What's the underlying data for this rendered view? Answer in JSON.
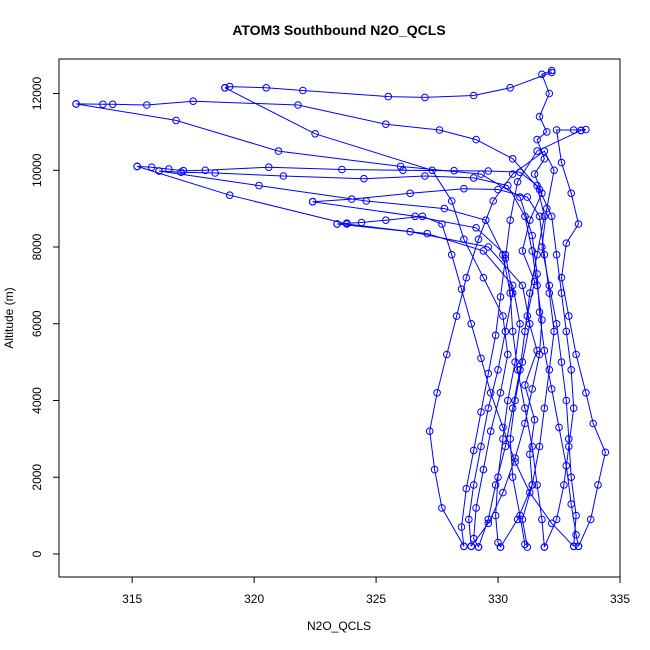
{
  "chart_data": {
    "type": "scatter",
    "title": "ATOM3 Southbound N2O_QCLS",
    "xlabel": "N2O_QCLS",
    "ylabel": "Altitude (m)",
    "xlim": [
      312,
      335
    ],
    "ylim": [
      -600,
      12900
    ],
    "x_ticks": [
      "315",
      "320",
      "325",
      "330",
      "335"
    ],
    "y_ticks": [
      "0",
      "2000",
      "4000",
      "6000",
      "8000",
      "10000",
      "12000"
    ],
    "marker": "open-circle",
    "line_connected": true,
    "grid": false,
    "color": "#0000ff",
    "series": [
      {
        "points": [
          [
            331.2,
            180
          ],
          [
            331.0,
            900
          ],
          [
            331.4,
            1800
          ],
          [
            331.3,
            2600
          ],
          [
            331.5,
            3500
          ],
          [
            331.1,
            4400
          ],
          [
            331.6,
            5300
          ],
          [
            331.2,
            6200
          ],
          [
            331.5,
            7100
          ],
          [
            331.0,
            7900
          ],
          [
            331.3,
            8700
          ],
          [
            331.8,
            9400
          ],
          [
            331.5,
            9900
          ],
          [
            331.9,
            10300
          ],
          [
            331.6,
            10800
          ],
          [
            332.0,
            11000
          ],
          [
            331.7,
            11400
          ],
          [
            332.1,
            12000
          ],
          [
            331.8,
            12500
          ],
          [
            332.2,
            12600
          ]
        ]
      },
      {
        "points": [
          [
            332.2,
            12550
          ],
          [
            330.5,
            12150
          ],
          [
            329.0,
            11950
          ],
          [
            327.0,
            11900
          ],
          [
            325.5,
            11920
          ],
          [
            322.0,
            12080
          ],
          [
            320.5,
            12150
          ],
          [
            319.0,
            12180
          ],
          [
            318.8,
            12150
          ]
        ]
      },
      {
        "points": [
          [
            318.8,
            12150
          ],
          [
            322.5,
            10950
          ],
          [
            327.3,
            10000
          ],
          [
            328.1,
            9200
          ],
          [
            328.6,
            8200
          ],
          [
            329.4,
            7200
          ],
          [
            330.2,
            6200
          ],
          [
            330.4,
            5200
          ],
          [
            330.1,
            4200
          ],
          [
            329.7,
            3200
          ],
          [
            329.4,
            2200
          ],
          [
            329.1,
            1200
          ],
          [
            329.0,
            400
          ],
          [
            329.2,
            180
          ]
        ]
      },
      {
        "points": [
          [
            329.2,
            180
          ],
          [
            329.6,
            900
          ],
          [
            329.9,
            1800
          ],
          [
            330.3,
            2800
          ],
          [
            330.6,
            3800
          ],
          [
            330.9,
            4800
          ],
          [
            331.1,
            5800
          ],
          [
            331.3,
            6800
          ],
          [
            331.6,
            7800
          ],
          [
            331.9,
            8800
          ],
          [
            331.6,
            9600
          ],
          [
            330.9,
            9950
          ],
          [
            329.6,
            9980
          ],
          [
            328.2,
            9990
          ],
          [
            326.1,
            10000
          ],
          [
            323.6,
            10020
          ],
          [
            320.6,
            10080
          ],
          [
            318.0,
            10000
          ],
          [
            317.1,
            9990
          ],
          [
            316.5,
            10030
          ],
          [
            315.8,
            10080
          ],
          [
            315.2,
            10100
          ]
        ]
      },
      {
        "points": [
          [
            315.2,
            10100
          ],
          [
            319.0,
            9350
          ],
          [
            323.8,
            8600
          ],
          [
            327.1,
            8350
          ],
          [
            329.4,
            7900
          ],
          [
            330.6,
            7000
          ],
          [
            330.9,
            6000
          ],
          [
            330.7,
            5000
          ],
          [
            330.4,
            4000
          ],
          [
            330.2,
            3000
          ],
          [
            330.0,
            2000
          ],
          [
            329.9,
            1000
          ],
          [
            330.0,
            300
          ],
          [
            330.1,
            180
          ]
        ]
      },
      {
        "points": [
          [
            330.1,
            180
          ],
          [
            330.8,
            900
          ],
          [
            331.4,
            1800
          ],
          [
            331.7,
            2800
          ],
          [
            331.9,
            3800
          ],
          [
            332.1,
            4800
          ],
          [
            332.3,
            5800
          ],
          [
            332.1,
            6800
          ],
          [
            331.9,
            7800
          ],
          [
            331.7,
            8800
          ],
          [
            331.2,
            9300
          ],
          [
            330.0,
            9500
          ],
          [
            328.6,
            9520
          ],
          [
            326.4,
            9400
          ],
          [
            324.0,
            9250
          ],
          [
            322.4,
            9180
          ]
        ]
      },
      {
        "points": [
          [
            322.4,
            9180
          ],
          [
            326.6,
            8800
          ],
          [
            329.1,
            8500
          ],
          [
            330.3,
            7800
          ],
          [
            330.6,
            6800
          ],
          [
            330.3,
            5800
          ],
          [
            330.0,
            4800
          ],
          [
            329.6,
            3800
          ],
          [
            329.3,
            2800
          ],
          [
            329.0,
            1800
          ],
          [
            328.8,
            900
          ],
          [
            328.9,
            200
          ]
        ]
      },
      {
        "points": [
          [
            328.9,
            200
          ],
          [
            329.6,
            800
          ],
          [
            330.2,
            1600
          ],
          [
            330.7,
            2500
          ],
          [
            331.1,
            3400
          ],
          [
            331.4,
            4300
          ],
          [
            331.7,
            5200
          ],
          [
            331.8,
            6100
          ],
          [
            331.6,
            7000
          ],
          [
            331.4,
            7900
          ],
          [
            331.1,
            8800
          ],
          [
            330.4,
            9600
          ],
          [
            329.0,
            9800
          ],
          [
            327.0,
            9850
          ],
          [
            324.5,
            9780
          ],
          [
            321.2,
            9850
          ],
          [
            318.4,
            9930
          ],
          [
            317.0,
            9950
          ],
          [
            316.1,
            9980
          ]
        ]
      },
      {
        "points": [
          [
            316.1,
            9980
          ],
          [
            320.2,
            9600
          ],
          [
            324.6,
            9200
          ],
          [
            327.8,
            9000
          ],
          [
            329.5,
            8700
          ],
          [
            330.2,
            7800
          ],
          [
            330.5,
            6800
          ],
          [
            330.6,
            5800
          ],
          [
            330.8,
            4800
          ],
          [
            331.1,
            3800
          ],
          [
            331.4,
            2800
          ],
          [
            331.6,
            1800
          ],
          [
            331.8,
            900
          ],
          [
            331.9,
            180
          ]
        ]
      },
      {
        "points": [
          [
            331.9,
            180
          ],
          [
            332.4,
            900
          ],
          [
            332.7,
            1800
          ],
          [
            332.9,
            2800
          ],
          [
            333.1,
            3800
          ],
          [
            333.0,
            4800
          ],
          [
            332.8,
            5800
          ],
          [
            332.6,
            6800
          ],
          [
            332.4,
            7800
          ],
          [
            332.2,
            8800
          ],
          [
            331.7,
            9500
          ],
          [
            330.6,
            10300
          ],
          [
            329.1,
            10800
          ],
          [
            327.6,
            11050
          ],
          [
            325.4,
            11200
          ],
          [
            321.8,
            11700
          ],
          [
            317.5,
            11800
          ],
          [
            315.6,
            11700
          ],
          [
            314.2,
            11720
          ],
          [
            313.8,
            11720
          ],
          [
            312.7,
            11730
          ]
        ]
      },
      {
        "points": [
          [
            312.7,
            11730
          ],
          [
            316.8,
            11300
          ],
          [
            321.0,
            10500
          ],
          [
            326.0,
            10100
          ],
          [
            329.3,
            9900
          ],
          [
            330.9,
            9300
          ],
          [
            331.4,
            8300
          ],
          [
            331.6,
            7300
          ],
          [
            331.7,
            6300
          ],
          [
            331.9,
            5300
          ],
          [
            332.2,
            4300
          ],
          [
            332.5,
            3300
          ],
          [
            332.8,
            2300
          ],
          [
            333.0,
            1300
          ],
          [
            333.2,
            500
          ],
          [
            333.3,
            200
          ]
        ]
      },
      {
        "points": [
          [
            333.3,
            200
          ],
          [
            333.8,
            900
          ],
          [
            334.1,
            1800
          ],
          [
            334.4,
            2650
          ],
          [
            333.9,
            3400
          ],
          [
            333.6,
            4200
          ],
          [
            333.2,
            5200
          ],
          [
            332.9,
            6200
          ],
          [
            332.6,
            7200
          ],
          [
            332.8,
            8100
          ],
          [
            333.3,
            8600
          ],
          [
            333.0,
            9400
          ],
          [
            332.6,
            10200
          ],
          [
            332.4,
            11050
          ],
          [
            333.1,
            11050
          ],
          [
            333.6,
            11060
          ],
          [
            333.4,
            11040
          ]
        ]
      },
      {
        "points": [
          [
            333.4,
            11040
          ],
          [
            331.6,
            10500
          ],
          [
            330.8,
            9700
          ],
          [
            330.5,
            8700
          ],
          [
            330.3,
            7700
          ],
          [
            330.1,
            6700
          ],
          [
            329.9,
            5700
          ],
          [
            329.6,
            4700
          ],
          [
            329.3,
            3700
          ],
          [
            329.0,
            2700
          ],
          [
            328.7,
            1700
          ],
          [
            328.5,
            700
          ],
          [
            328.6,
            200
          ]
        ]
      },
      {
        "points": [
          [
            328.6,
            200
          ],
          [
            327.7,
            1200
          ],
          [
            327.4,
            2200
          ],
          [
            327.2,
            3200
          ],
          [
            327.5,
            4200
          ],
          [
            327.9,
            5200
          ],
          [
            328.3,
            6200
          ],
          [
            328.7,
            7200
          ],
          [
            329.2,
            8200
          ],
          [
            329.8,
            9200
          ],
          [
            330.6,
            9900
          ],
          [
            331.9,
            10500
          ],
          [
            332.3,
            10000
          ],
          [
            332.0,
            9000
          ],
          [
            331.8,
            8000
          ],
          [
            332.1,
            7000
          ],
          [
            332.4,
            6000
          ],
          [
            332.6,
            5000
          ],
          [
            332.8,
            4000
          ],
          [
            332.9,
            3000
          ],
          [
            333.0,
            2000
          ],
          [
            333.2,
            1000
          ],
          [
            333.1,
            200
          ]
        ]
      },
      {
        "points": [
          [
            333.1,
            200
          ],
          [
            332.2,
            800
          ],
          [
            331.3,
            1600
          ],
          [
            330.7,
            2400
          ],
          [
            330.2,
            3300
          ],
          [
            329.7,
            4200
          ],
          [
            329.3,
            5100
          ],
          [
            328.9,
            6000
          ],
          [
            328.5,
            6900
          ],
          [
            328.1,
            7800
          ],
          [
            327.7,
            8600
          ],
          [
            326.9,
            8800
          ],
          [
            325.4,
            8700
          ],
          [
            324.4,
            8640
          ],
          [
            323.8,
            8620
          ],
          [
            323.4,
            8600
          ]
        ]
      },
      {
        "points": [
          [
            323.4,
            8600
          ],
          [
            326.4,
            8400
          ],
          [
            329.6,
            8000
          ],
          [
            331.0,
            7000
          ],
          [
            331.3,
            6000
          ],
          [
            331.0,
            5000
          ],
          [
            330.7,
            4000
          ],
          [
            330.5,
            3000
          ],
          [
            330.6,
            2000
          ],
          [
            330.9,
            1000
          ],
          [
            331.1,
            250
          ]
        ]
      }
    ]
  }
}
